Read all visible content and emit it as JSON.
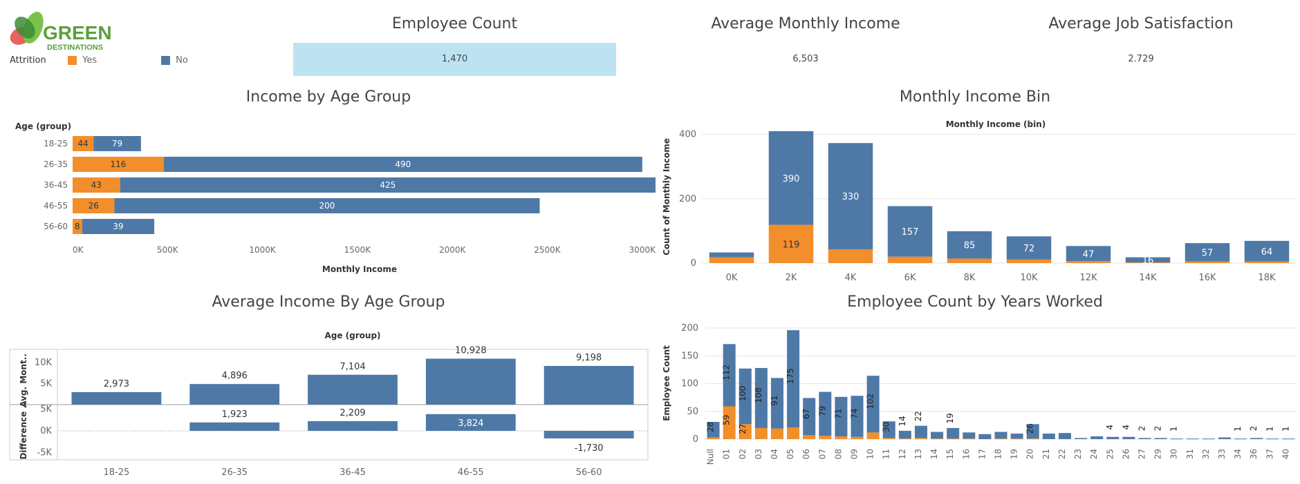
{
  "brand": {
    "name_line1": "GREEN",
    "name_line2": "DESTINATIONS",
    "colors": {
      "leaf_dark": "#3d8b37",
      "leaf_light": "#7cc24a",
      "leaf_red": "#e8625e",
      "text": "#5aa03c"
    }
  },
  "legend": {
    "title": "Attrition",
    "items": [
      {
        "label": "Yes",
        "color": "#f28e2b"
      },
      {
        "label": "No",
        "color": "#4e79a7"
      }
    ]
  },
  "kpis": [
    {
      "title": "Employee Count",
      "value": "1,470",
      "highlight": true
    },
    {
      "title": "Average Monthly Income",
      "value": "6,503",
      "highlight": false
    },
    {
      "title": "Average Job Satisfaction",
      "value": "2.729",
      "highlight": false
    }
  ],
  "colors": {
    "yes": "#f28e2b",
    "no": "#4e79a7",
    "kpi_highlight": "#bde3f2",
    "grid": "#e6e6e6"
  },
  "chart_data": [
    {
      "id": "income-by-age",
      "type": "bar",
      "orientation": "horizontal",
      "stacked": true,
      "title": "Income by Age Group",
      "row_header": "Age (group)",
      "xlabel": "Monthly Income",
      "categories": [
        "18-25",
        "26-35",
        "36-45",
        "46-55",
        "56-60"
      ],
      "series": [
        {
          "name": "Yes",
          "labels": [
            "44",
            "116",
            "43",
            "26",
            "8"
          ],
          "values": [
            110000,
            480000,
            250000,
            220000,
            50000
          ]
        },
        {
          "name": "No",
          "labels": [
            "79",
            "490",
            "425",
            "200",
            "39"
          ],
          "values": [
            250000,
            2520000,
            2820000,
            2240000,
            380000
          ]
        }
      ],
      "xticks": [
        "0K",
        "500K",
        "1000K",
        "1500K",
        "2000K",
        "2500K",
        "3000K"
      ],
      "xtick_values": [
        0,
        500000,
        1000000,
        1500000,
        2000000,
        2500000,
        3000000
      ],
      "xlim": [
        0,
        3030000
      ]
    },
    {
      "id": "monthly-income-bin",
      "type": "bar",
      "stacked": true,
      "title": "Monthly Income Bin",
      "top_label": "Monthly Income (bin)",
      "ylabel": "Count of Monthly Income",
      "categories": [
        "0K",
        "2K",
        "4K",
        "6K",
        "8K",
        "10K",
        "12K",
        "14K",
        "16K",
        "18K"
      ],
      "series": [
        {
          "name": "Yes",
          "values": [
            18,
            119,
            43,
            20,
            14,
            11,
            6,
            2,
            5,
            5
          ],
          "labels": [
            "",
            "119",
            "",
            "",
            "",
            "",
            "",
            "",
            "",
            ""
          ]
        },
        {
          "name": "No",
          "values": [
            15,
            390,
            330,
            157,
            85,
            72,
            47,
            16,
            57,
            64
          ],
          "labels": [
            "",
            "390",
            "330",
            "157",
            "85",
            "72",
            "47",
            "16",
            "57",
            "64"
          ]
        }
      ],
      "yticks": [
        0,
        200,
        400
      ],
      "ylim": [
        0,
        410
      ]
    },
    {
      "id": "avg-income-by-age",
      "type": "bar",
      "title": "Average Income By Age Group",
      "top_label": "Age (group)",
      "categories": [
        "18-25",
        "26-35",
        "36-45",
        "46-55",
        "56-60"
      ],
      "panels": [
        {
          "ylabel": "Avg. Mont..",
          "values": [
            2973,
            4896,
            7104,
            10928,
            9198
          ],
          "labels": [
            "2,973",
            "4,896",
            "7,104",
            "10,928",
            "9,198"
          ],
          "yticks": [
            "10K",
            "5K"
          ],
          "ytick_values": [
            10000,
            5000
          ],
          "ylim": [
            0,
            11500
          ]
        },
        {
          "ylabel": "Difference ..",
          "values": [
            null,
            1923,
            2209,
            3824,
            -1730
          ],
          "labels": [
            "",
            "1,923",
            "2,209",
            "3,824",
            "-1,730"
          ],
          "yticks": [
            "5K",
            "0K",
            "-5K"
          ],
          "ytick_values": [
            5000,
            0,
            -5000
          ],
          "ylim": [
            -6000,
            6000
          ]
        }
      ]
    },
    {
      "id": "count-by-years",
      "type": "bar",
      "stacked": true,
      "title": "Employee Count by Years Worked",
      "ylabel": "Employee Count",
      "categories": [
        "Null",
        "01",
        "02",
        "03",
        "04",
        "05",
        "06",
        "07",
        "08",
        "09",
        "10",
        "11",
        "12",
        "13",
        "14",
        "15",
        "16",
        "17",
        "18",
        "19",
        "20",
        "21",
        "22",
        "23",
        "24",
        "25",
        "26",
        "27",
        "29",
        "30",
        "31",
        "32",
        "33",
        "34",
        "36",
        "37",
        "40"
      ],
      "series": [
        {
          "name": "Yes",
          "values": [
            3,
            59,
            27,
            20,
            19,
            21,
            7,
            6,
            5,
            4,
            12,
            2,
            1,
            2,
            1,
            1,
            1,
            0,
            1,
            1,
            1,
            0,
            0,
            0,
            0,
            0,
            0,
            0,
            0,
            0,
            0,
            0,
            0,
            0,
            0,
            0,
            0
          ],
          "labels": [
            "",
            "59",
            "27",
            "20",
            "19",
            "21",
            "",
            "",
            "",
            "",
            "",
            "",
            "",
            "",
            "",
            "",
            "",
            "",
            "",
            "",
            "",
            "",
            "",
            "",
            "",
            "",
            "",
            "",
            "",
            "",
            "",
            "",
            "",
            "",
            "",
            "",
            ""
          ]
        },
        {
          "name": "No",
          "values": [
            28,
            112,
            100,
            108,
            91,
            175,
            67,
            79,
            71,
            74,
            102,
            30,
            14,
            22,
            12,
            19,
            11,
            9,
            12,
            9,
            26,
            10,
            11,
            2,
            5,
            4,
            4,
            2,
            2,
            1,
            1,
            1,
            3,
            1,
            2,
            1,
            1
          ],
          "labels": [
            "28",
            "112",
            "100",
            "108",
            "91",
            "175",
            "67",
            "79",
            "71",
            "74",
            "102",
            "30",
            "14",
            "22",
            "",
            "19",
            "",
            "",
            "",
            "",
            "26",
            "",
            "",
            "",
            "",
            "4",
            "4",
            "2",
            "2",
            "1",
            "",
            "",
            "",
            "1",
            "2",
            "1",
            "1"
          ]
        }
      ],
      "yticks": [
        0,
        50,
        100,
        150,
        200
      ],
      "ylim": [
        0,
        200
      ]
    }
  ]
}
